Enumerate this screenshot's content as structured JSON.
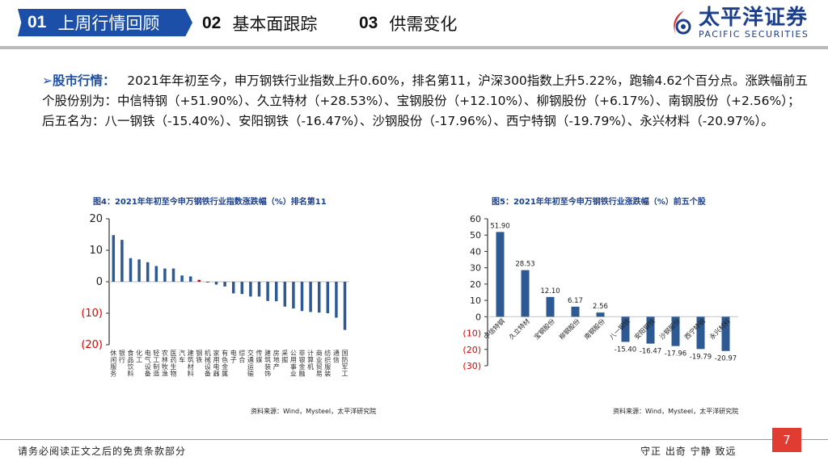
{
  "header": {
    "tabs": [
      {
        "num": "01",
        "label": "上周行情回顾",
        "active": true
      },
      {
        "num": "02",
        "label": "基本面跟踪"
      },
      {
        "num": "03",
        "label": "供需变化"
      }
    ],
    "logo": {
      "cn": "太平洋证券",
      "en": "PACIFIC SECURITIES"
    }
  },
  "summary": {
    "label": "股市行情：",
    "text": "2021年年初至今，申万钢铁行业指数上升0.60%，排名第11，沪深300指数上升5.22%，跑输4.62个百分点。涨跌幅前五个股份别为：中信特钢（+51.90%）、久立特材（+28.53%）、宝钢股份（+12.10%）、柳钢股份（+6.17%）、南钢股份（+2.56%）；后五名为：八一钢铁（-15.40%）、安阳钢铁（-16.47%）、沙钢股份（-17.96%）、西宁特钢（-19.79%）、永兴材料（-20.97%）。"
  },
  "colors": {
    "bar": "#2e5a94",
    "highlight": "#c00000",
    "negative_tick": "#e00000",
    "accent": "#1b4fa8",
    "page_badge": "#e03c31"
  },
  "chart_data": [
    {
      "type": "bar",
      "title": "图4：2021年年初至今申万钢铁行业指数涨跌幅（%）排名第11",
      "source": "资料来源：Wind，Mysteel，太平洋研究院",
      "ylim": [
        -20,
        20
      ],
      "yticks": [
        20,
        10,
        0,
        -10,
        -20
      ],
      "ytick_labels": [
        "20",
        "10",
        "0",
        "(10)",
        "(20)"
      ],
      "highlight": "钢铁",
      "categories": [
        "休闲服务",
        "银行",
        "食品饮料",
        "化工",
        "电气设备",
        "轻工制造",
        "农林牧渔",
        "医药生物",
        "汽车",
        "建筑材料",
        "钢铁",
        "机械设备",
        "家用电器",
        "有色金属",
        "电子",
        "综合",
        "交通运输",
        "传媒",
        "建筑装饰",
        "房地产",
        "采掘",
        "公用事业",
        "非银金融",
        "计算机",
        "商业贸易",
        "纺织服装",
        "通信",
        "国防军工"
      ],
      "values": [
        14.8,
        13.3,
        7.5,
        7.1,
        6.2,
        5.0,
        4.2,
        4.2,
        2.0,
        1.7,
        0.6,
        -0.2,
        -0.9,
        -1.5,
        -3.7,
        -3.9,
        -4.7,
        -4.7,
        -6.1,
        -6.2,
        -7.9,
        -8.5,
        -9.3,
        -9.6,
        -9.8,
        -10.0,
        -11.4,
        -15.3
      ]
    },
    {
      "type": "bar",
      "title": "图5：2021年年初至今申万钢铁行业涨跌幅（%）前五个股",
      "source": "资料来源：Wind，Mysteel，太平洋研究院",
      "ylim": [
        -30,
        60
      ],
      "yticks": [
        60,
        50,
        40,
        30,
        20,
        10,
        0,
        -10,
        -20,
        -30
      ],
      "ytick_labels": [
        "60",
        "50",
        "40",
        "30",
        "20",
        "10",
        "0",
        "(10)",
        "(20)",
        "(30)"
      ],
      "categories": [
        "中信特钢",
        "久立特材",
        "宝钢股份",
        "柳钢股份",
        "南钢股份",
        "八一钢铁",
        "安阳钢铁",
        "沙钢股份",
        "西宁特钢",
        "永兴材料"
      ],
      "values": [
        51.9,
        28.53,
        12.1,
        6.17,
        2.56,
        -15.4,
        -16.47,
        -17.96,
        -19.79,
        -20.97
      ],
      "data_labels": [
        "51.90",
        "28.53",
        "12.10",
        "6.17",
        "2.56",
        "-15.40",
        "-16.47",
        "-17.96",
        "-19.79",
        "-20.97"
      ]
    }
  ],
  "footer": {
    "disclaimer": "请务必阅读正文之后的免责条款部分",
    "motto": "守正 出奇 宁静 致远",
    "page": "7"
  }
}
